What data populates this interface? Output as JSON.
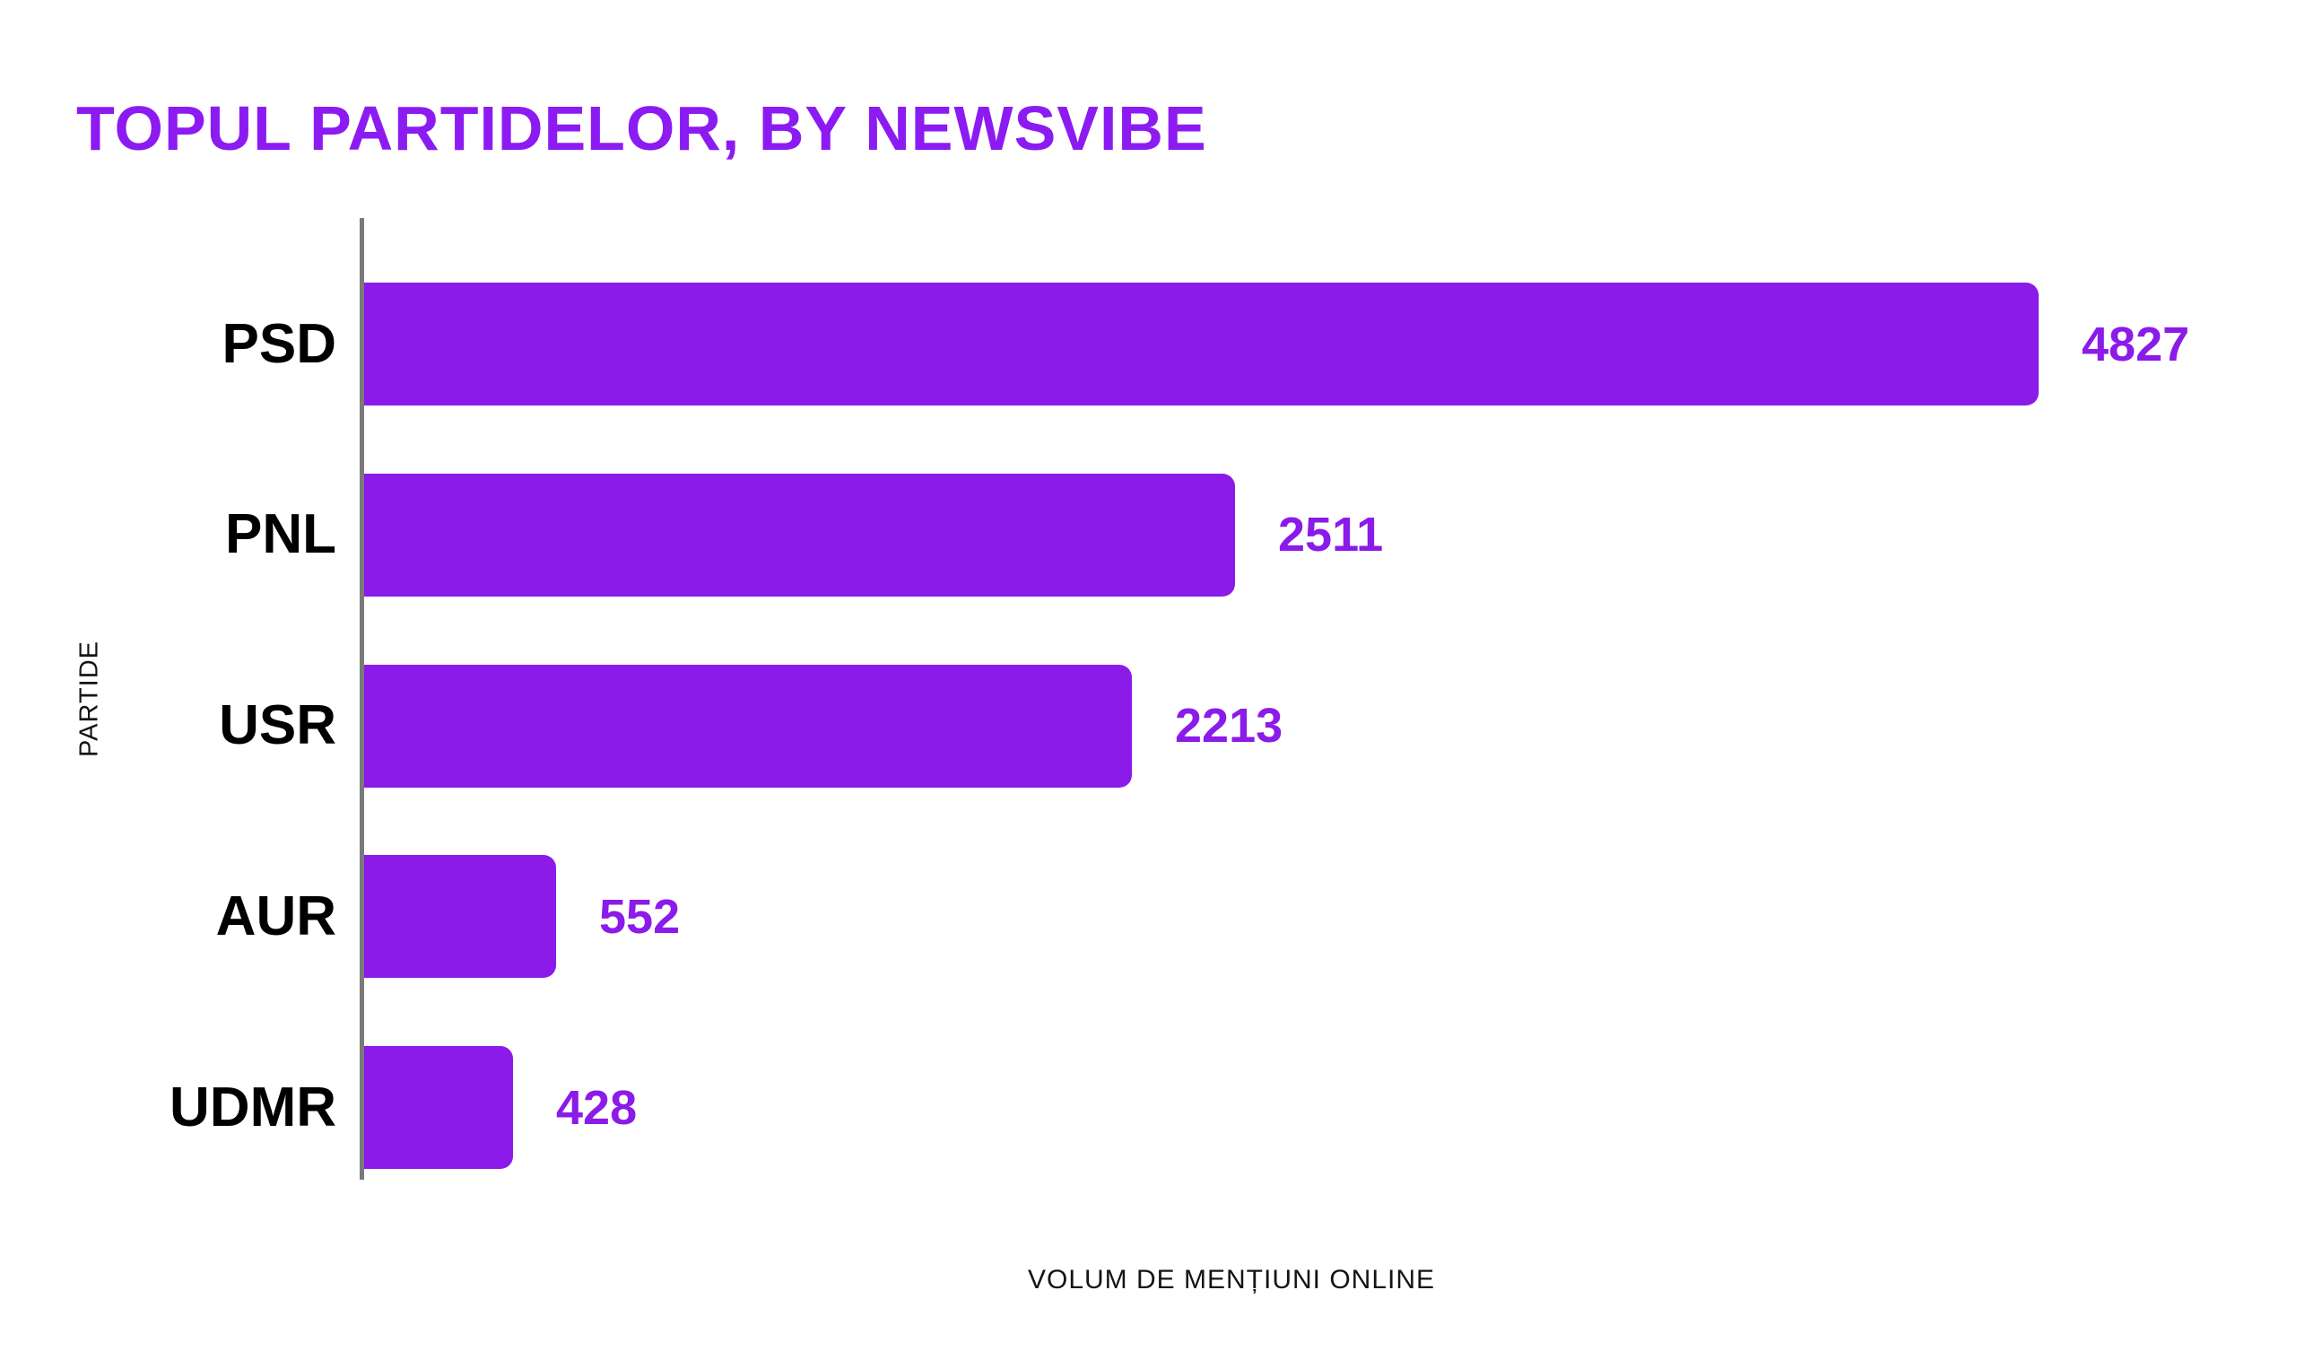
{
  "page": {
    "background": "#ffffff"
  },
  "chart_data": {
    "type": "bar",
    "orientation": "horizontal",
    "title": "TOPUL PARTIDELOR, BY NEWSVIBE",
    "categories": [
      "PSD",
      "PNL",
      "USR",
      "AUR",
      "UDMR"
    ],
    "values": [
      4827,
      2511,
      2213,
      552,
      428
    ],
    "value_labels": [
      "4827",
      "2511",
      "2213",
      "552",
      "428"
    ],
    "xlabel": "VOLUM DE MENȚIUNI ONLINE",
    "ylabel": "PARTIDE",
    "xlim": [
      0,
      5000
    ],
    "grid": false,
    "legend": false,
    "value_label_position": "outside-end",
    "colors": {
      "bar": "#8B1BE8",
      "title": "#8C1BF2",
      "value_label": "#8B1BE8",
      "category_label": "#000000",
      "axis_line": "#7A7A7A",
      "axis_title_text": "#141414"
    }
  }
}
